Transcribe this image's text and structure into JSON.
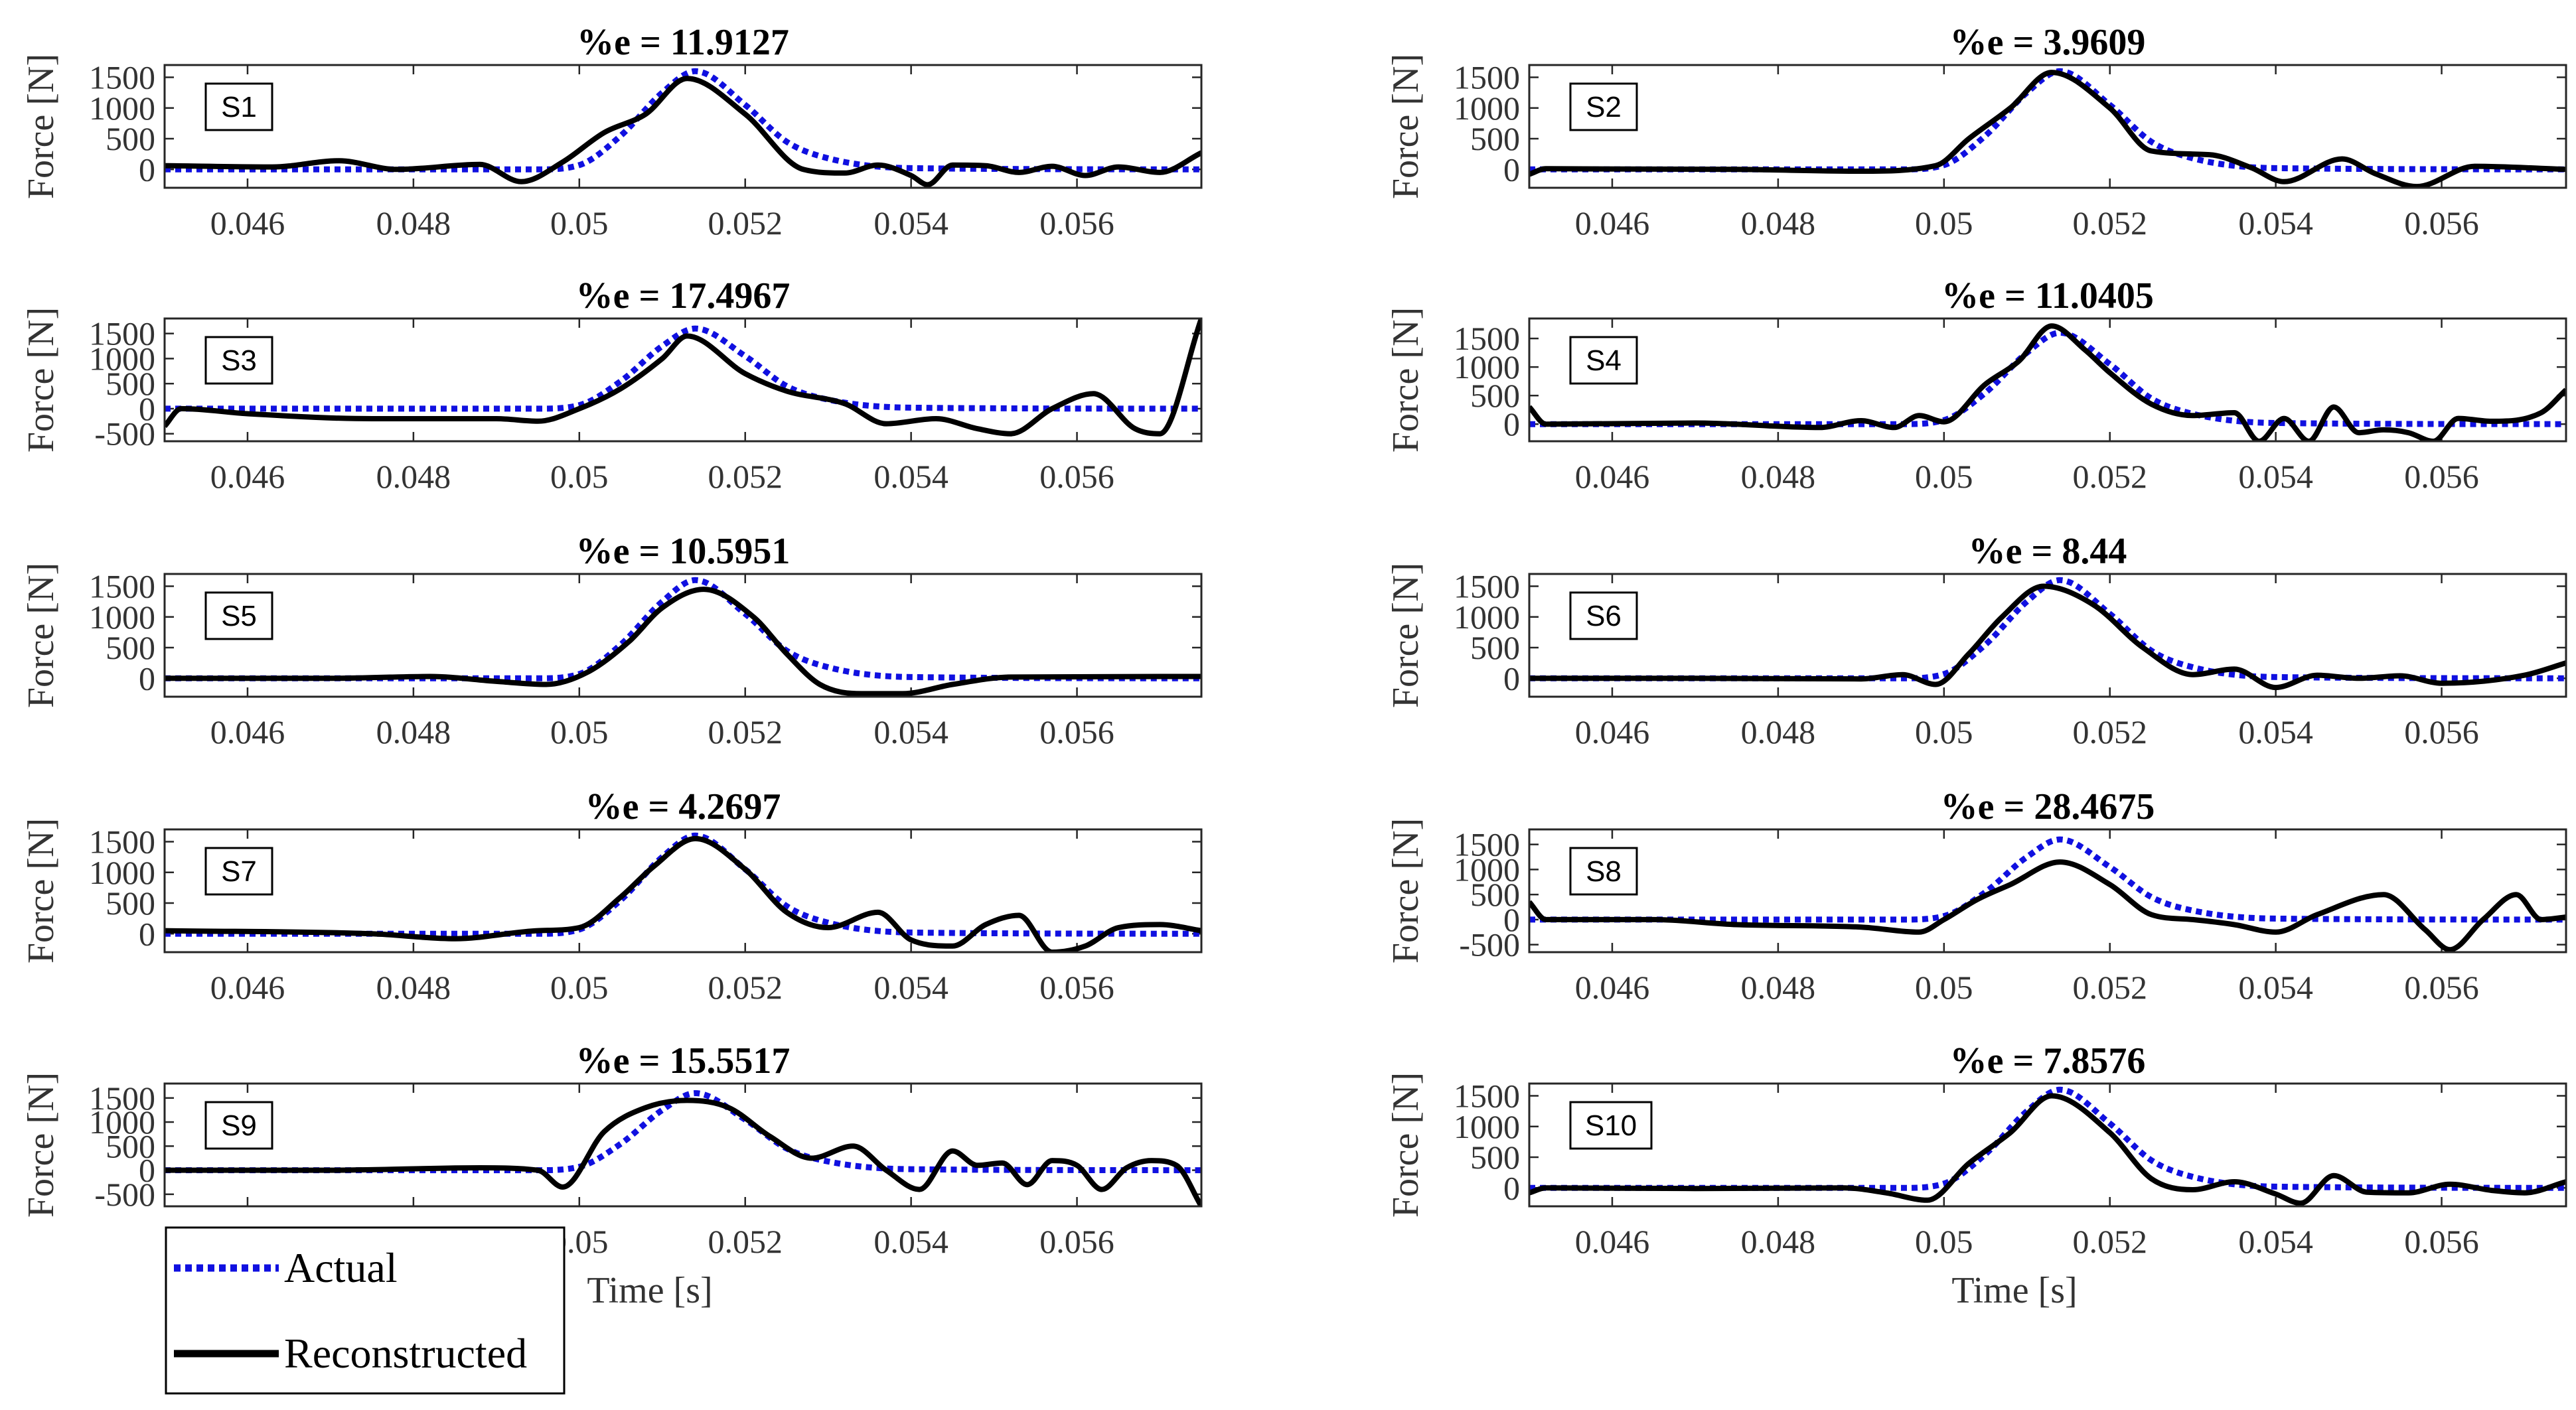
{
  "chart_data": {
    "type": "line",
    "xlim": [
      0.045,
      0.0575
    ],
    "x_ticks": [
      0.046,
      0.048,
      0.05,
      0.052,
      0.054,
      0.056
    ],
    "x_tick_labels": [
      "0.046",
      "0.048",
      "0.05",
      "0.052",
      "0.054",
      "0.056"
    ],
    "ylabel": "Force [N]",
    "xlabel": "Time [s]",
    "colors": {
      "actual": "#1010e0",
      "reconstructed": "#000000"
    },
    "legend": {
      "position": "bottom-left",
      "entries": [
        {
          "name": "Actual",
          "style": "dotted",
          "color": "#1010e0"
        },
        {
          "name": "Reconstructed",
          "style": "solid",
          "color": "#000000"
        }
      ]
    },
    "actual_x": [
      0.045,
      0.0495,
      0.05,
      0.0505,
      0.051,
      0.0514,
      0.052,
      0.0525,
      0.053,
      0.054,
      0.0575
    ],
    "actual_y": [
      0,
      0,
      70,
      550,
      1250,
      1600,
      1050,
      450,
      180,
      20,
      0
    ],
    "panels": [
      {
        "id": "S1",
        "title": "%e = 11.9127",
        "xlabel": "",
        "ylim": [
          -300,
          1700
        ],
        "y_ticks": [
          0,
          500,
          1000,
          1500
        ],
        "y_tick_labels": [
          "0",
          "500",
          "1000",
          "1500"
        ],
        "recon_x": [
          0.045,
          0.0463,
          0.0471,
          0.0478,
          0.0488,
          0.0493,
          0.0498,
          0.0503,
          0.0508,
          0.0513,
          0.052,
          0.0527,
          0.0532,
          0.0536,
          0.054,
          0.0542,
          0.0545,
          0.0549,
          0.0553,
          0.0557,
          0.0561,
          0.0565,
          0.057,
          0.0575
        ],
        "recon_y": [
          60,
          40,
          140,
          0,
          80,
          -200,
          120,
          600,
          900,
          1480,
          900,
          0,
          -60,
          70,
          -100,
          -250,
          70,
          60,
          -50,
          50,
          -100,
          40,
          -50,
          270
        ]
      },
      {
        "id": "S2",
        "title": "3.9609",
        "xlabel": "",
        "ylim": [
          -300,
          1700
        ],
        "y_ticks": [
          0,
          500,
          1000,
          1500
        ],
        "y_tick_labels": [
          "0",
          "500",
          "1000",
          "1500"
        ],
        "recon_x": [
          0.045,
          0.0452,
          0.0475,
          0.049,
          0.0499,
          0.0503,
          0.0508,
          0.0513,
          0.052,
          0.0525,
          0.0532,
          0.0537,
          0.0541,
          0.0548,
          0.0552,
          0.0557,
          0.0564,
          0.0575
        ],
        "recon_y": [
          -80,
          10,
          0,
          -30,
          60,
          500,
          1000,
          1580,
          1000,
          300,
          240,
          30,
          -200,
          170,
          -70,
          -280,
          50,
          0
        ],
        "title_prefix": "%e = "
      },
      {
        "id": "S3",
        "title": "%e = 17.4967",
        "xlabel": "",
        "ylim": [
          -650,
          1800
        ],
        "y_ticks": [
          -500,
          0,
          500,
          1000,
          1500
        ],
        "y_tick_labels": [
          "-500",
          "0",
          "500",
          "1000",
          "1500"
        ],
        "recon_x": [
          0.045,
          0.0452,
          0.046,
          0.0475,
          0.049,
          0.0495,
          0.05,
          0.0505,
          0.051,
          0.0513,
          0.052,
          0.0525,
          0.0532,
          0.0537,
          0.0543,
          0.0548,
          0.0552,
          0.0557,
          0.0562,
          0.0567,
          0.057,
          0.0575
        ],
        "recon_y": [
          -350,
          0,
          -100,
          -200,
          -200,
          -250,
          0,
          400,
          1000,
          1450,
          700,
          350,
          100,
          -300,
          -200,
          -400,
          -500,
          0,
          300,
          -400,
          -500,
          1800
        ]
      },
      {
        "id": "S4",
        "title": "%e = 11.0405",
        "xlabel": "",
        "ylim": [
          -300,
          1850
        ],
        "y_ticks": [
          0,
          500,
          1000,
          1500
        ],
        "y_tick_labels": [
          "0",
          "500",
          "1000",
          "1500"
        ],
        "recon_x": [
          0.045,
          0.0452,
          0.047,
          0.0485,
          0.049,
          0.0494,
          0.0497,
          0.05,
          0.0505,
          0.0509,
          0.0513,
          0.0517,
          0.052,
          0.0525,
          0.053,
          0.0535,
          0.0538,
          0.0541,
          0.0544,
          0.0547,
          0.055,
          0.0553,
          0.0556,
          0.0559,
          0.0562,
          0.0566,
          0.0572,
          0.0575
        ],
        "recon_y": [
          300,
          0,
          20,
          -60,
          60,
          -60,
          150,
          40,
          700,
          1100,
          1720,
          1300,
          900,
          350,
          150,
          200,
          -300,
          100,
          -300,
          300,
          -150,
          -100,
          -150,
          -300,
          100,
          50,
          200,
          600
        ]
      },
      {
        "id": "S5",
        "title": "%e = 10.5951",
        "xlabel": "",
        "ylim": [
          -300,
          1700
        ],
        "y_ticks": [
          0,
          500,
          1000,
          1500
        ],
        "y_tick_labels": [
          "0",
          "500",
          "1000",
          "1500"
        ],
        "recon_x": [
          0.045,
          0.047,
          0.0482,
          0.049,
          0.0496,
          0.0501,
          0.0506,
          0.051,
          0.0515,
          0.0521,
          0.0525,
          0.0529,
          0.0534,
          0.0539,
          0.0545,
          0.0552,
          0.0575
        ],
        "recon_y": [
          0,
          0,
          30,
          -50,
          -100,
          100,
          600,
          1150,
          1450,
          1000,
          400,
          -100,
          -250,
          -250,
          -100,
          20,
          30
        ]
      },
      {
        "id": "S6",
        "title": "%e = 8.44",
        "xlabel": "",
        "ylim": [
          -300,
          1700
        ],
        "y_ticks": [
          0,
          500,
          1000,
          1500
        ],
        "y_tick_labels": [
          "0",
          "500",
          "1000",
          "1500"
        ],
        "recon_x": [
          0.045,
          0.047,
          0.049,
          0.0495,
          0.0499,
          0.0503,
          0.0507,
          0.0512,
          0.0518,
          0.0524,
          0.053,
          0.0535,
          0.054,
          0.0545,
          0.055,
          0.0555,
          0.056,
          0.057,
          0.0575
        ],
        "recon_y": [
          0,
          0,
          -10,
          60,
          -100,
          400,
          1000,
          1500,
          1200,
          500,
          60,
          150,
          -150,
          50,
          0,
          40,
          -80,
          50,
          250
        ]
      },
      {
        "id": "S7",
        "title": "%e = 4.2697",
        "xlabel": "",
        "ylim": [
          -300,
          1700
        ],
        "y_ticks": [
          0,
          500,
          1000,
          1500
        ],
        "y_tick_labels": [
          "0",
          "500",
          "1000",
          "1500"
        ],
        "recon_x": [
          0.045,
          0.0475,
          0.0485,
          0.0495,
          0.05,
          0.0505,
          0.0509,
          0.0514,
          0.052,
          0.0525,
          0.053,
          0.0536,
          0.054,
          0.0545,
          0.0549,
          0.0553,
          0.0557,
          0.0561,
          0.0565,
          0.057,
          0.0575
        ],
        "recon_y": [
          50,
          0,
          -80,
          50,
          100,
          600,
          1100,
          1550,
          1050,
          350,
          100,
          350,
          -100,
          -200,
          150,
          300,
          -300,
          -200,
          100,
          150,
          50
        ]
      },
      {
        "id": "S8",
        "title": "%e = 28.4675",
        "xlabel": "",
        "ylim": [
          -650,
          1800
        ],
        "y_ticks": [
          -500,
          0,
          500,
          1000,
          1500
        ],
        "y_tick_labels": [
          "-500",
          "0",
          "500",
          "1000",
          "1500"
        ],
        "recon_x": [
          0.045,
          0.0452,
          0.0465,
          0.0475,
          0.049,
          0.0497,
          0.05,
          0.0504,
          0.0508,
          0.0514,
          0.052,
          0.0525,
          0.053,
          0.0535,
          0.054,
          0.0545,
          0.0553,
          0.0558,
          0.0561,
          0.0565,
          0.0569,
          0.0572,
          0.0575
        ],
        "recon_y": [
          350,
          0,
          0,
          -100,
          -150,
          -250,
          0,
          400,
          700,
          1150,
          700,
          100,
          0,
          -100,
          -250,
          100,
          500,
          -200,
          -600,
          0,
          500,
          0,
          50
        ]
      },
      {
        "id": "S9",
        "title": "%e = 15.5517",
        "xlabel": "Time [s]",
        "ylim": [
          -750,
          1800
        ],
        "y_ticks": [
          -500,
          0,
          500,
          1000,
          1500
        ],
        "y_tick_labels": [
          "-500",
          "0",
          "500",
          "1000",
          "1500"
        ],
        "recon_x": [
          0.045,
          0.047,
          0.0488,
          0.0495,
          0.0498,
          0.0503,
          0.0508,
          0.0513,
          0.0518,
          0.0523,
          0.0528,
          0.0533,
          0.0537,
          0.0541,
          0.0545,
          0.0548,
          0.0551,
          0.0554,
          0.0557,
          0.056,
          0.0563,
          0.0566,
          0.0569,
          0.0572,
          0.0575
        ],
        "recon_y": [
          0,
          0,
          50,
          0,
          -350,
          800,
          1300,
          1450,
          1300,
          700,
          250,
          500,
          0,
          -400,
          400,
          100,
          150,
          -300,
          200,
          100,
          -400,
          50,
          200,
          100,
          -750
        ]
      },
      {
        "id": "S10",
        "title": "%e = 7.8576",
        "xlabel": "Time [s]",
        "ylim": [
          -300,
          1700
        ],
        "y_ticks": [
          0,
          500,
          1000,
          1500
        ],
        "y_tick_labels": [
          "0",
          "500",
          "1000",
          "1500"
        ],
        "recon_x": [
          0.045,
          0.0452,
          0.047,
          0.0488,
          0.0493,
          0.0498,
          0.0503,
          0.0508,
          0.0513,
          0.052,
          0.0525,
          0.053,
          0.0535,
          0.054,
          0.0543,
          0.0547,
          0.0551,
          0.0556,
          0.0561,
          0.0566,
          0.057,
          0.0575
        ],
        "recon_y": [
          -80,
          0,
          -10,
          0,
          -80,
          -200,
          400,
          900,
          1500,
          900,
          150,
          -30,
          100,
          -100,
          -250,
          200,
          -70,
          -80,
          60,
          -40,
          -80,
          100
        ]
      }
    ]
  }
}
